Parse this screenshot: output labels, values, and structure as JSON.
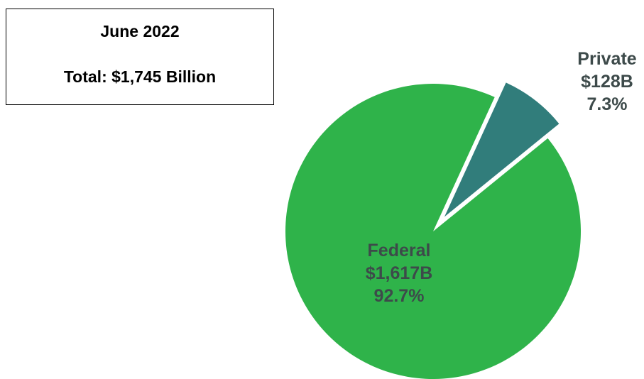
{
  "info_box": {
    "date": "June 2022",
    "total": "Total: $1,745 Billion"
  },
  "colors": {
    "federal": "#2fb34a",
    "private": "#317d7b",
    "label": "#3d4a4a"
  },
  "chart_data": {
    "type": "pie",
    "title": "",
    "total_label": "Total: $1,745 Billion",
    "slices": [
      {
        "name": "Federal",
        "amount": "$1,617B",
        "percent": "92.7%",
        "value": 92.7,
        "color": "#2fb34a",
        "exploded": false
      },
      {
        "name": "Private",
        "amount": "$128B",
        "percent": "7.3%",
        "value": 7.3,
        "color": "#317d7b",
        "exploded": true
      }
    ],
    "legend": "none"
  }
}
